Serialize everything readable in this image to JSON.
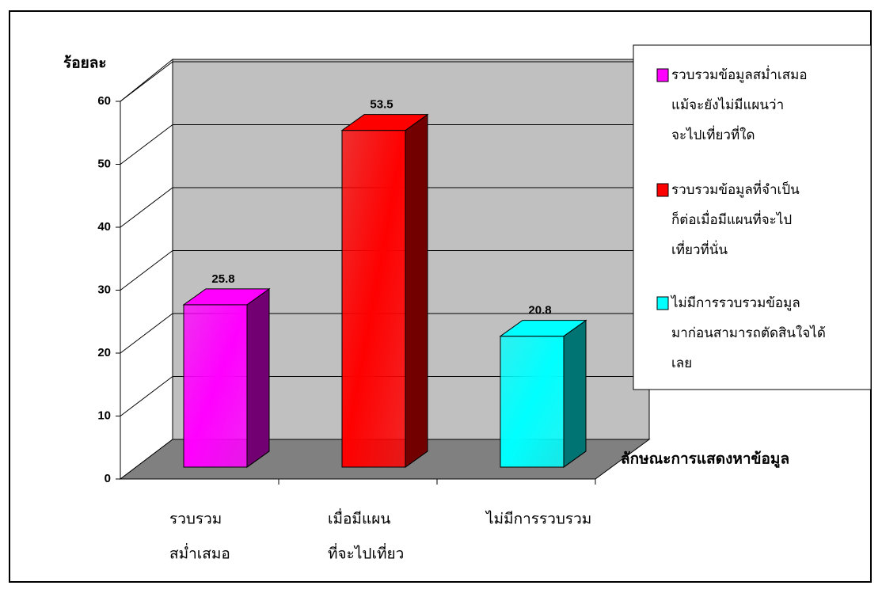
{
  "chart_data": {
    "type": "bar3d",
    "y_label": "ร้อยละ",
    "x_label": "ลักษณะการแสดงหาข้อมูล",
    "categories": [
      [
        "รวบรวม",
        "สม่ำเสมอ"
      ],
      [
        "เมื่อมีแผน",
        "ที่จะไปเที่ยว"
      ],
      [
        "ไม่มีการรวบรวม"
      ]
    ],
    "values": [
      25.8,
      53.5,
      20.8
    ],
    "colors": [
      "#ff00ff",
      "#ff0000",
      "#00ffff"
    ],
    "legend": [
      [
        "รวบรวมข้อมูลสม่ำเสมอ",
        "แม้จะยังไม่มีแผนว่า",
        "จะไปเที่ยวที่ใด"
      ],
      [
        "รวบรวมข้อมูลที่จำเป็น",
        "ก็ต่อเมื่อมีแผนที่จะไป",
        "เที่ยวที่นั่น"
      ],
      [
        "ไม่มีการรวบรวมข้อมูล",
        "มาก่อนสามารถตัดสินใจได้",
        "เลย"
      ]
    ],
    "ylim": [
      0,
      60
    ],
    "yticks": [
      0,
      10,
      20,
      30,
      40,
      50,
      60
    ],
    "grid": true
  }
}
